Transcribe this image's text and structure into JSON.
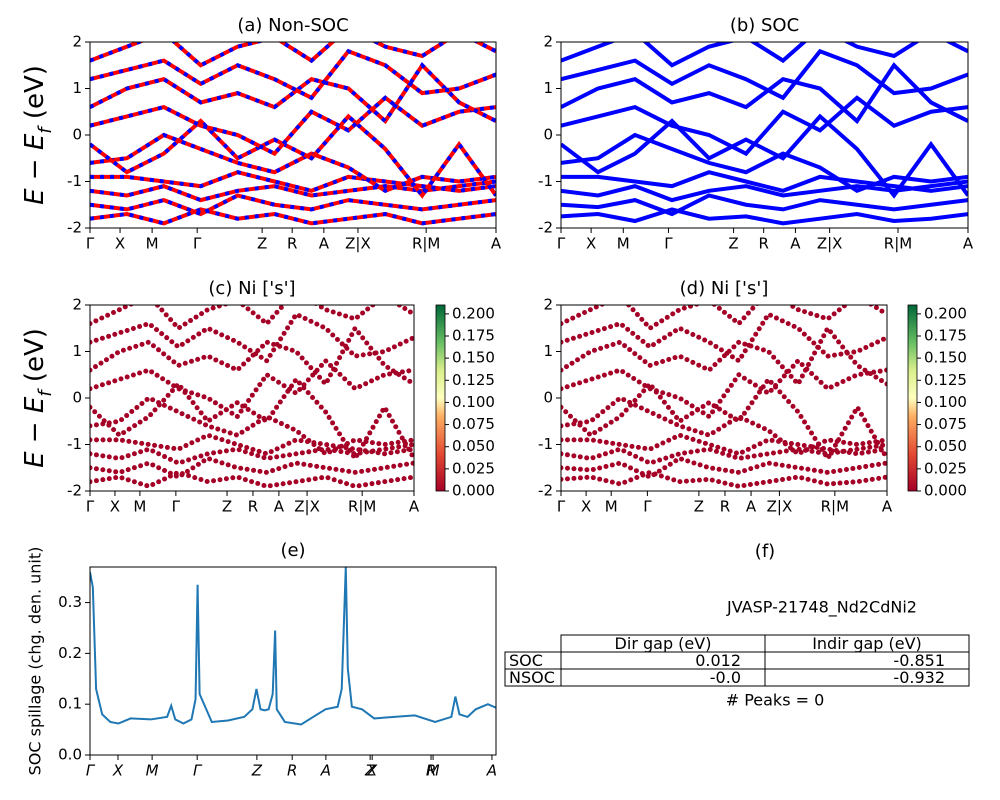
{
  "chart_data": [
    {
      "type": "band",
      "title": "(a) Non-SOC",
      "ylabel": [
        "E − E",
        "f",
        " (eV)"
      ],
      "style": "dashed",
      "colors": [
        "#ff0000",
        "#0000ff"
      ],
      "xlim": [
        0,
        1
      ],
      "ylim": [
        -2,
        2
      ],
      "yticks": [
        -2,
        -1,
        0,
        1,
        2
      ],
      "xticks": [
        {
          "value": 0,
          "label": "Γ"
        },
        {
          "value": 0.074,
          "label": "X"
        },
        {
          "value": 0.153,
          "label": "M"
        },
        {
          "value": 0.264,
          "label": "Γ"
        },
        {
          "value": 0.424,
          "label": "Z"
        },
        {
          "value": 0.498,
          "label": "R"
        },
        {
          "value": 0.576,
          "label": "A"
        },
        {
          "value": 0.66,
          "label": "Z|X"
        },
        {
          "value": 0.828,
          "label": "R|M"
        },
        {
          "value": 1,
          "label": "A"
        }
      ],
      "x": [
        0,
        0.0909,
        0.1818,
        0.2727,
        0.3636,
        0.4545,
        0.5455,
        0.6364,
        0.7273,
        0.8182,
        0.9091,
        1
      ],
      "bands": [
        [
          -1.8,
          -1.7,
          -1.9,
          -1.6,
          -1.8,
          -1.7,
          -1.9,
          -1.8,
          -1.7,
          -1.9,
          -1.8,
          -1.7
        ],
        [
          -1.5,
          -1.6,
          -1.4,
          -1.7,
          -1.3,
          -1.5,
          -1.6,
          -1.4,
          -1.5,
          -1.6,
          -1.5,
          -1.4
        ],
        [
          -1.2,
          -1.3,
          -1.1,
          -1.4,
          -1.2,
          -1.1,
          -1.3,
          -1.2,
          -1.1,
          -1.2,
          -1.1,
          -1.0
        ],
        [
          -0.9,
          -0.9,
          -1.0,
          -1.1,
          -0.8,
          -1.0,
          -1.2,
          -0.9,
          -1.0,
          -1.1,
          -1.2,
          -1.1
        ],
        [
          -0.6,
          -0.5,
          0.0,
          -0.3,
          -0.6,
          -0.8,
          -0.4,
          -0.7,
          -1.2,
          -0.9,
          -1.0,
          -0.9
        ],
        [
          -0.2,
          -0.8,
          -0.4,
          0.3,
          -0.5,
          -0.1,
          -0.5,
          0.4,
          -0.3,
          -1.3,
          -0.2,
          -1.3
        ],
        [
          0.2,
          0.4,
          0.6,
          0.2,
          0.0,
          -0.4,
          0.5,
          0.1,
          0.8,
          0.2,
          0.5,
          0.6
        ],
        [
          0.6,
          1.0,
          1.2,
          0.7,
          0.9,
          0.6,
          1.2,
          1.0,
          0.3,
          1.5,
          0.7,
          0.3
        ],
        [
          1.2,
          1.4,
          1.6,
          1.1,
          1.5,
          1.2,
          0.8,
          1.8,
          1.5,
          0.9,
          1.0,
          1.3
        ],
        [
          1.6,
          1.9,
          2.2,
          1.5,
          1.9,
          2.1,
          1.6,
          2.3,
          1.9,
          1.7,
          2.2,
          1.8
        ]
      ]
    },
    {
      "type": "band",
      "title": "(b) SOC",
      "style": "solid",
      "colors": [
        "#0000ff"
      ],
      "xlim": [
        0,
        1
      ],
      "ylim": [
        -2,
        2
      ],
      "yticks": [
        -2,
        -1,
        0,
        1,
        2
      ],
      "xticks": [
        {
          "value": 0,
          "label": "Γ"
        },
        {
          "value": 0.074,
          "label": "X"
        },
        {
          "value": 0.153,
          "label": "M"
        },
        {
          "value": 0.264,
          "label": "Γ"
        },
        {
          "value": 0.424,
          "label": "Z"
        },
        {
          "value": 0.498,
          "label": "R"
        },
        {
          "value": 0.576,
          "label": "A"
        },
        {
          "value": 0.66,
          "label": "Z|X"
        },
        {
          "value": 0.828,
          "label": "R|M"
        },
        {
          "value": 1,
          "label": "A"
        }
      ],
      "x": [
        0,
        0.0909,
        0.1818,
        0.2727,
        0.3636,
        0.4545,
        0.5455,
        0.6364,
        0.7273,
        0.8182,
        0.9091,
        1
      ],
      "bands": [
        [
          -1.75,
          -1.7,
          -1.85,
          -1.6,
          -1.8,
          -1.75,
          -1.9,
          -1.8,
          -1.7,
          -1.85,
          -1.8,
          -1.7
        ],
        [
          -1.5,
          -1.55,
          -1.4,
          -1.7,
          -1.3,
          -1.5,
          -1.6,
          -1.4,
          -1.5,
          -1.6,
          -1.5,
          -1.4
        ],
        [
          -1.2,
          -1.3,
          -1.1,
          -1.4,
          -1.2,
          -1.1,
          -1.3,
          -1.2,
          -1.1,
          -1.2,
          -1.1,
          -1.0
        ],
        [
          -0.9,
          -0.9,
          -1.0,
          -1.1,
          -0.8,
          -1.0,
          -1.2,
          -0.9,
          -1.0,
          -1.1,
          -1.2,
          -1.1
        ],
        [
          -0.6,
          -0.5,
          0.0,
          -0.3,
          -0.6,
          -0.8,
          -0.4,
          -0.7,
          -1.2,
          -0.9,
          -1.0,
          -0.9
        ],
        [
          -0.2,
          -0.8,
          -0.4,
          0.3,
          -0.5,
          -0.1,
          -0.5,
          0.4,
          -0.3,
          -1.3,
          -0.2,
          -1.3
        ],
        [
          0.2,
          0.4,
          0.6,
          0.2,
          0.0,
          -0.4,
          0.5,
          0.1,
          0.8,
          0.2,
          0.5,
          0.6
        ],
        [
          0.6,
          1.0,
          1.2,
          0.7,
          0.9,
          0.6,
          1.2,
          1.0,
          0.3,
          1.5,
          0.7,
          0.3
        ],
        [
          1.2,
          1.4,
          1.6,
          1.1,
          1.5,
          1.2,
          0.8,
          1.8,
          1.5,
          0.9,
          1.0,
          1.3
        ],
        [
          1.6,
          1.9,
          2.2,
          1.5,
          1.9,
          2.1,
          1.6,
          2.3,
          1.9,
          1.7,
          2.2,
          1.8
        ]
      ]
    },
    {
      "type": "band",
      "title": "(c)  Ni ['s']",
      "ylabel": [
        "E − E",
        "f",
        " (eV)"
      ],
      "style": "dots",
      "colors": [
        "#a50026"
      ],
      "xlim": [
        0,
        1
      ],
      "ylim": [
        -2,
        2
      ],
      "yticks": [
        -2,
        -1,
        0,
        1,
        2
      ],
      "xticks": [
        {
          "value": 0,
          "label": "Γ"
        },
        {
          "value": 0.077,
          "label": "X"
        },
        {
          "value": 0.154,
          "label": "M"
        },
        {
          "value": 0.265,
          "label": "Γ"
        },
        {
          "value": 0.423,
          "label": "Z"
        },
        {
          "value": 0.503,
          "label": "R"
        },
        {
          "value": 0.583,
          "label": "A"
        },
        {
          "value": 0.67,
          "label": "Z|X"
        },
        {
          "value": 0.84,
          "label": "R|M"
        },
        {
          "value": 1,
          "label": "A"
        }
      ],
      "clim": [
        0,
        0.21
      ],
      "cticks": [
        {
          "value": 0,
          "label": "0.000"
        },
        {
          "value": 0.025,
          "label": "0.025"
        },
        {
          "value": 0.05,
          "label": "0.050"
        },
        {
          "value": 0.075,
          "label": "0.075"
        },
        {
          "value": 0.1,
          "label": "0.100"
        },
        {
          "value": 0.125,
          "label": "0.125"
        },
        {
          "value": 0.15,
          "label": "0.150"
        },
        {
          "value": 0.175,
          "label": "0.175"
        },
        {
          "value": 0.2,
          "label": "0.200"
        }
      ],
      "x": [
        0,
        0.0909,
        0.1818,
        0.2727,
        0.3636,
        0.4545,
        0.5455,
        0.6364,
        0.7273,
        0.8182,
        0.9091,
        1
      ],
      "bands": [
        [
          -1.8,
          -1.7,
          -1.9,
          -1.6,
          -1.8,
          -1.7,
          -1.9,
          -1.8,
          -1.7,
          -1.9,
          -1.8,
          -1.7
        ],
        [
          -1.5,
          -1.6,
          -1.4,
          -1.7,
          -1.3,
          -1.5,
          -1.6,
          -1.4,
          -1.5,
          -1.6,
          -1.5,
          -1.4
        ],
        [
          -1.2,
          -1.3,
          -1.1,
          -1.4,
          -1.2,
          -1.1,
          -1.3,
          -1.2,
          -1.1,
          -1.2,
          -1.1,
          -1.0
        ],
        [
          -0.9,
          -0.9,
          -1.0,
          -1.1,
          -0.8,
          -1.0,
          -1.2,
          -0.9,
          -1.0,
          -1.1,
          -1.2,
          -1.1
        ],
        [
          -0.6,
          -0.5,
          0.0,
          -0.3,
          -0.6,
          -0.8,
          -0.4,
          -0.7,
          -1.2,
          -0.9,
          -1.0,
          -0.9
        ],
        [
          -0.2,
          -0.8,
          -0.4,
          0.3,
          -0.5,
          -0.1,
          -0.5,
          0.4,
          -0.3,
          -1.3,
          -0.2,
          -1.3
        ],
        [
          0.2,
          0.4,
          0.6,
          0.2,
          0.0,
          -0.4,
          0.5,
          0.1,
          0.8,
          0.2,
          0.5,
          0.6
        ],
        [
          0.6,
          1.0,
          1.2,
          0.7,
          0.9,
          0.6,
          1.2,
          1.0,
          0.3,
          1.5,
          0.7,
          0.3
        ],
        [
          1.2,
          1.4,
          1.6,
          1.1,
          1.5,
          1.2,
          0.8,
          1.8,
          1.5,
          0.9,
          1.0,
          1.3
        ],
        [
          1.6,
          1.9,
          2.2,
          1.5,
          1.9,
          2.1,
          1.6,
          2.3,
          1.9,
          1.7,
          2.2,
          1.8
        ]
      ]
    },
    {
      "type": "band",
      "title": "(d) Ni ['s']",
      "style": "dots",
      "colors": [
        "#a50026"
      ],
      "xlim": [
        0,
        1
      ],
      "ylim": [
        -2,
        2
      ],
      "yticks": [
        -2,
        -1,
        0,
        1,
        2
      ],
      "xticks": [
        {
          "value": 0,
          "label": "Γ"
        },
        {
          "value": 0.077,
          "label": "X"
        },
        {
          "value": 0.154,
          "label": "M"
        },
        {
          "value": 0.265,
          "label": "Γ"
        },
        {
          "value": 0.423,
          "label": "Z"
        },
        {
          "value": 0.503,
          "label": "R"
        },
        {
          "value": 0.583,
          "label": "A"
        },
        {
          "value": 0.67,
          "label": "Z|X"
        },
        {
          "value": 0.84,
          "label": "R|M"
        },
        {
          "value": 1,
          "label": "A"
        }
      ],
      "clim": [
        0,
        0.21
      ],
      "cticks": [
        {
          "value": 0,
          "label": "0.000"
        },
        {
          "value": 0.025,
          "label": "0.025"
        },
        {
          "value": 0.05,
          "label": "0.050"
        },
        {
          "value": 0.075,
          "label": "0.075"
        },
        {
          "value": 0.1,
          "label": "0.100"
        },
        {
          "value": 0.125,
          "label": "0.125"
        },
        {
          "value": 0.15,
          "label": "0.150"
        },
        {
          "value": 0.175,
          "label": "0.175"
        },
        {
          "value": 0.2,
          "label": "0.200"
        }
      ],
      "x": [
        0,
        0.0909,
        0.1818,
        0.2727,
        0.3636,
        0.4545,
        0.5455,
        0.6364,
        0.7273,
        0.8182,
        0.9091,
        1
      ],
      "bands": [
        [
          -1.75,
          -1.7,
          -1.85,
          -1.6,
          -1.8,
          -1.75,
          -1.9,
          -1.8,
          -1.7,
          -1.85,
          -1.8,
          -1.7
        ],
        [
          -1.5,
          -1.55,
          -1.4,
          -1.7,
          -1.3,
          -1.5,
          -1.6,
          -1.4,
          -1.5,
          -1.6,
          -1.5,
          -1.4
        ],
        [
          -1.2,
          -1.3,
          -1.1,
          -1.4,
          -1.2,
          -1.1,
          -1.3,
          -1.2,
          -1.1,
          -1.2,
          -1.1,
          -1.0
        ],
        [
          -0.9,
          -0.9,
          -1.0,
          -1.1,
          -0.8,
          -1.0,
          -1.2,
          -0.9,
          -1.0,
          -1.1,
          -1.2,
          -1.1
        ],
        [
          -0.6,
          -0.5,
          0.0,
          -0.3,
          -0.6,
          -0.8,
          -0.4,
          -0.7,
          -1.2,
          -0.9,
          -1.0,
          -0.9
        ],
        [
          -0.2,
          -0.8,
          -0.4,
          0.3,
          -0.5,
          -0.1,
          -0.5,
          0.4,
          -0.3,
          -1.3,
          -0.2,
          -1.3
        ],
        [
          0.2,
          0.4,
          0.6,
          0.2,
          0.0,
          -0.4,
          0.5,
          0.1,
          0.8,
          0.2,
          0.5,
          0.6
        ],
        [
          0.6,
          1.0,
          1.2,
          0.7,
          0.9,
          0.6,
          1.2,
          1.0,
          0.3,
          1.5,
          0.7,
          0.3
        ],
        [
          1.2,
          1.4,
          1.6,
          1.1,
          1.5,
          1.2,
          0.8,
          1.8,
          1.5,
          0.9,
          1.0,
          1.3
        ],
        [
          1.6,
          1.9,
          2.2,
          1.5,
          1.9,
          2.1,
          1.6,
          2.3,
          1.9,
          1.7,
          2.2,
          1.8
        ]
      ]
    },
    {
      "type": "line",
      "title": "(e)",
      "ylabel": "SOC spillage (chg. den. unit)",
      "color": "#1f77b4",
      "xlim": [
        0,
        1
      ],
      "ylim": [
        0,
        0.37
      ],
      "yticks": [
        {
          "value": 0,
          "label": "0.0"
        },
        0.1,
        0.2,
        0.3
      ],
      "xticks": [
        {
          "value": 0,
          "label": "Γ"
        },
        {
          "value": 0.069,
          "label": "X"
        },
        {
          "value": 0.153,
          "label": "M"
        },
        {
          "value": 0.264,
          "label": "Γ"
        },
        {
          "value": 0.411,
          "label": "Z"
        },
        {
          "value": 0.498,
          "label": "R"
        },
        {
          "value": 0.581,
          "label": "A"
        },
        {
          "value": 0.69,
          "label": "Z"
        },
        {
          "value": 0.695,
          "label": "X"
        },
        {
          "value": 0.84,
          "label": "R"
        },
        {
          "value": 0.845,
          "label": "M"
        },
        {
          "value": 0.99,
          "label": "A"
        }
      ],
      "x": [
        0,
        0.007,
        0.015,
        0.03,
        0.05,
        0.07,
        0.1,
        0.15,
        0.19,
        0.2,
        0.21,
        0.23,
        0.25,
        0.26,
        0.265,
        0.27,
        0.3,
        0.34,
        0.38,
        0.4,
        0.41,
        0.42,
        0.43,
        0.44,
        0.45,
        0.456,
        0.46,
        0.48,
        0.52,
        0.58,
        0.61,
        0.62,
        0.63,
        0.635,
        0.645,
        0.67,
        0.7,
        0.75,
        0.8,
        0.85,
        0.89,
        0.9,
        0.91,
        0.93,
        0.95,
        0.98,
        1.0
      ],
      "values": [
        0.36,
        0.33,
        0.13,
        0.08,
        0.065,
        0.062,
        0.072,
        0.07,
        0.075,
        0.097,
        0.07,
        0.062,
        0.07,
        0.11,
        0.335,
        0.12,
        0.065,
        0.068,
        0.075,
        0.09,
        0.13,
        0.09,
        0.088,
        0.09,
        0.12,
        0.245,
        0.09,
        0.065,
        0.06,
        0.09,
        0.095,
        0.13,
        0.37,
        0.17,
        0.095,
        0.09,
        0.072,
        0.075,
        0.078,
        0.065,
        0.075,
        0.115,
        0.08,
        0.075,
        0.09,
        0.1,
        0.093
      ]
    },
    {
      "type": "table",
      "title": "(f)",
      "subtitle": "JVASP-21748_Nd2CdNi2",
      "columns": [
        "Dir gap (eV)",
        "Indir gap (eV)"
      ],
      "rows": [
        {
          "label": "SOC",
          "cells": [
            "0.012",
            "-0.851"
          ]
        },
        {
          "label": "NSOC",
          "cells": [
            "-0.0",
            "-0.932"
          ]
        }
      ],
      "footnote": "# Peaks = 0"
    }
  ]
}
